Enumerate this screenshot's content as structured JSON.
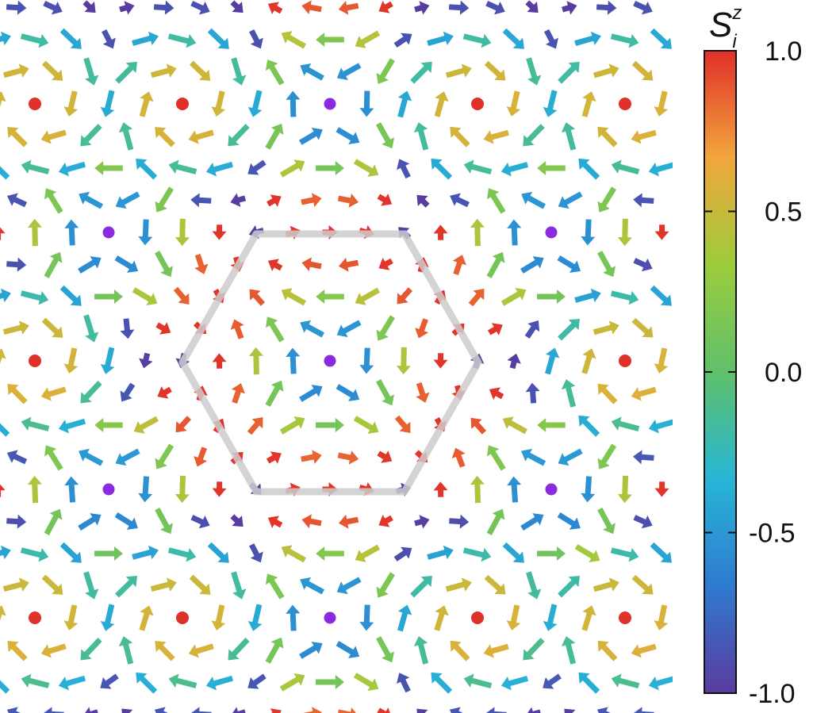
{
  "colorbar": {
    "symbol": "S",
    "superscript": "z",
    "subscript": "i",
    "ticks": [
      {
        "value": 1.0,
        "label": "1.0"
      },
      {
        "value": 0.5,
        "label": "0.5"
      },
      {
        "value": 0.0,
        "label": "0.0"
      },
      {
        "value": -0.5,
        "label": "-0.5"
      },
      {
        "value": -1.0,
        "label": "-1.0"
      }
    ],
    "range": [
      -1.0,
      1.0
    ],
    "colormap": [
      "#5a3b9e",
      "#2f7ad0",
      "#27b6d6",
      "#5fc06a",
      "#9ccc3c",
      "#f2a63b",
      "#e0302a"
    ]
  },
  "spin_field": {
    "lattice": "triangular",
    "texture": "skyrmion-lattice",
    "core_color": "#e0302a",
    "center_color": "#8a2be2",
    "highlight": {
      "shape": "hexagon",
      "color": "#cccccc"
    }
  }
}
